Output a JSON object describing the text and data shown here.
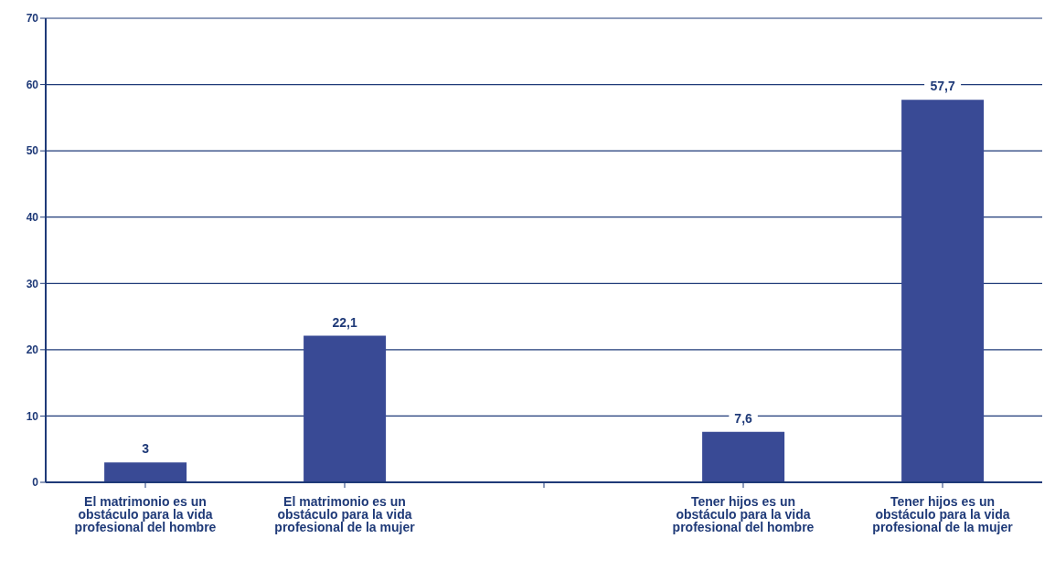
{
  "chart_data": {
    "type": "bar",
    "categories": [
      "El matrimonio es un obstáculo para la vida profesional del hombre",
      "El matrimonio es un obstáculo para la vida profesional de la mujer",
      null,
      "Tener hijos es un obstáculo para la vida profesional del hombre",
      "Tener hijos es un obstáculo para la vida profesional de la mujer"
    ],
    "values": [
      3,
      22.1,
      null,
      7.6,
      57.7
    ],
    "value_labels": [
      "3",
      "22,1",
      null,
      "7,6",
      "57,7"
    ],
    "color": "#394a95",
    "ylim": [
      0,
      70
    ],
    "yticks": [
      0,
      10,
      20,
      30,
      40,
      50,
      60,
      70
    ],
    "grid": "y"
  }
}
